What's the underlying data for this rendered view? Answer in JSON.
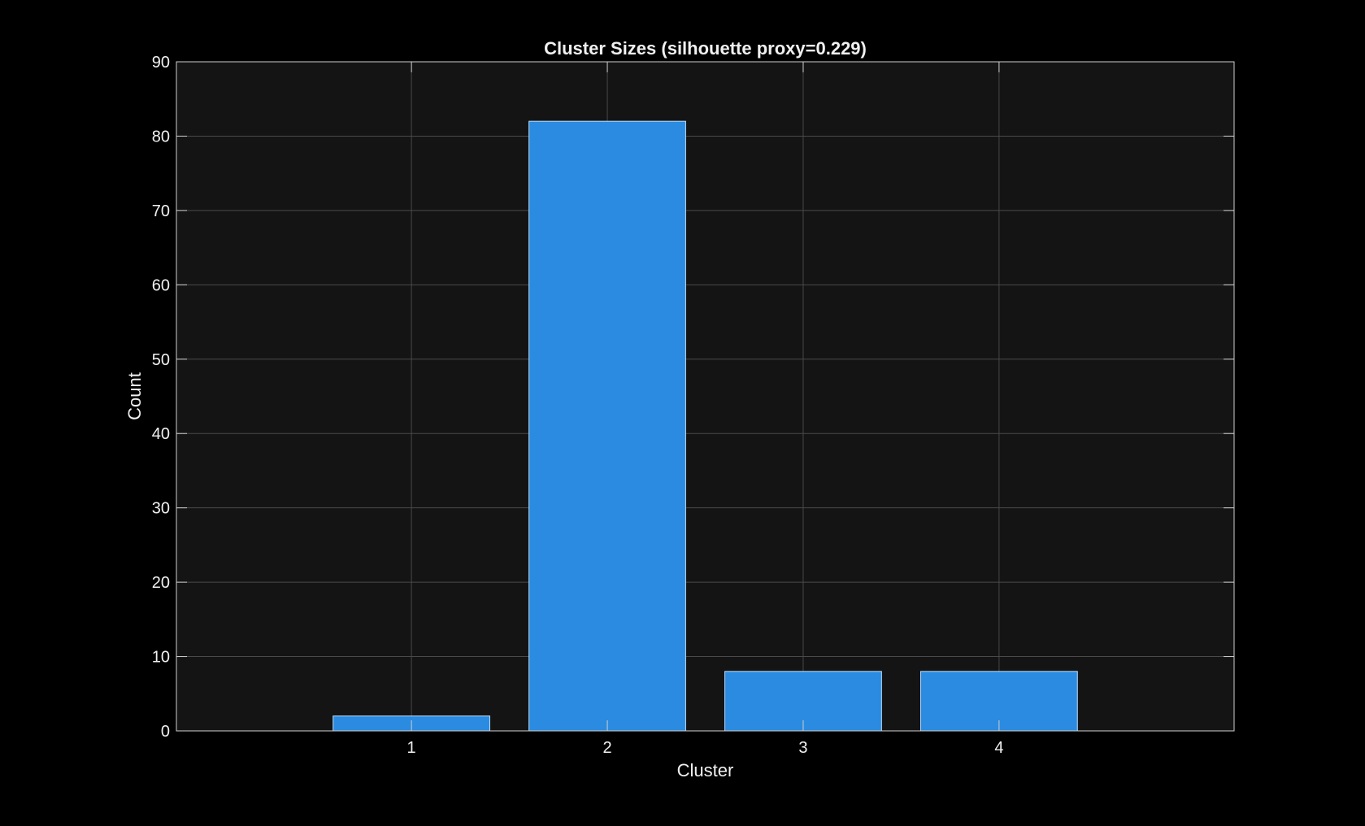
{
  "colors": {
    "figure_background": "#000000",
    "plot_background": "#141414",
    "bar_fill": "#2A8BE0",
    "bar_edge": "#BFE0FF",
    "grid": "#4a4a4a",
    "axis": "#cfcfcf",
    "text": "#f0f0f0"
  },
  "chart_data": {
    "type": "bar",
    "title": "Cluster Sizes (silhouette proxy=0.229)",
    "xlabel": "Cluster",
    "ylabel": "Count",
    "categories": [
      "1",
      "2",
      "3",
      "4"
    ],
    "x": [
      1,
      2,
      3,
      4
    ],
    "values": [
      2,
      82,
      8,
      8
    ],
    "xlim": [
      -0.2,
      5.2
    ],
    "ylim": [
      0,
      90
    ],
    "yticks": [
      0,
      10,
      20,
      30,
      40,
      50,
      60,
      70,
      80,
      90
    ],
    "xticks": [
      1,
      2,
      3,
      4
    ],
    "grid": true,
    "legend": "none"
  }
}
